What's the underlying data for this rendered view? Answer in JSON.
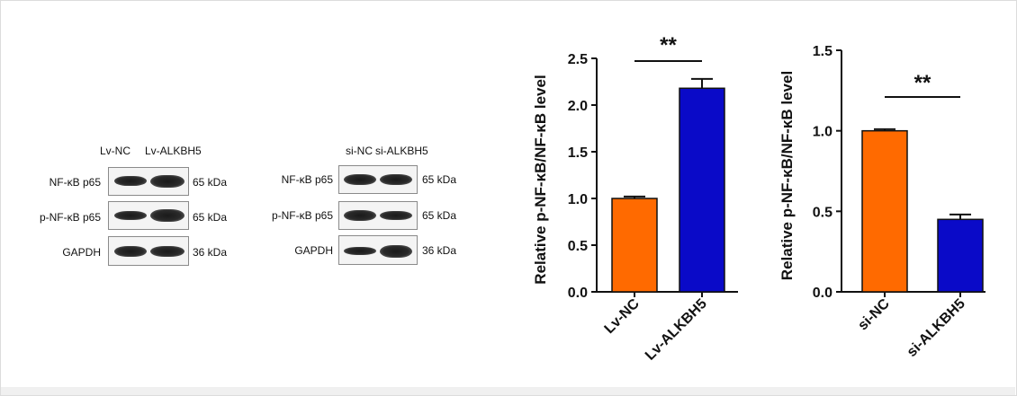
{
  "blots": [
    {
      "lanes": [
        "Lv-NC",
        "Lv-ALKBH5"
      ],
      "rows": [
        {
          "label": "NF-κB p65",
          "kda": "65 kDa"
        },
        {
          "label": "p-NF-κB p65",
          "kda": "65 kDa"
        },
        {
          "label": "GAPDH",
          "kda": "36 kDa"
        }
      ]
    },
    {
      "lanes": [
        "si-NC",
        "si-ALKBH5"
      ],
      "rows": [
        {
          "label": "NF-κB p65",
          "kda": "65 kDa"
        },
        {
          "label": "p-NF-κB p65",
          "kda": "65 kDa"
        },
        {
          "label": "GAPDH",
          "kda": "36 kDa"
        }
      ]
    }
  ],
  "colors": {
    "control": "#ff6a00",
    "treatment": "#0a0ac8"
  },
  "chart_data": [
    {
      "type": "bar",
      "categories": [
        "Lv-NC",
        "Lv-ALKBH5"
      ],
      "values": [
        1.0,
        2.18
      ],
      "errors": [
        0.02,
        0.1
      ],
      "colors": [
        "#ff6a00",
        "#0a0ac8"
      ],
      "ylabel": "Relative p-NF-κB/NF-κB level",
      "xlabel": "",
      "title": "",
      "ylim": [
        0,
        2.5
      ],
      "yticks": [
        "0.0",
        "0.5",
        "1.0",
        "1.5",
        "2.0",
        "2.5"
      ],
      "significance": "**",
      "grid": false
    },
    {
      "type": "bar",
      "categories": [
        "si-NC",
        "si-ALKBH5"
      ],
      "values": [
        1.0,
        0.45
      ],
      "errors": [
        0.01,
        0.03
      ],
      "colors": [
        "#ff6a00",
        "#0a0ac8"
      ],
      "ylabel": "Relative p-NF-κB/NF-κB level",
      "xlabel": "",
      "title": "",
      "ylim": [
        0,
        1.5
      ],
      "yticks": [
        "0.0",
        "0.5",
        "1.0",
        "1.5"
      ],
      "significance": "**",
      "grid": false
    }
  ]
}
